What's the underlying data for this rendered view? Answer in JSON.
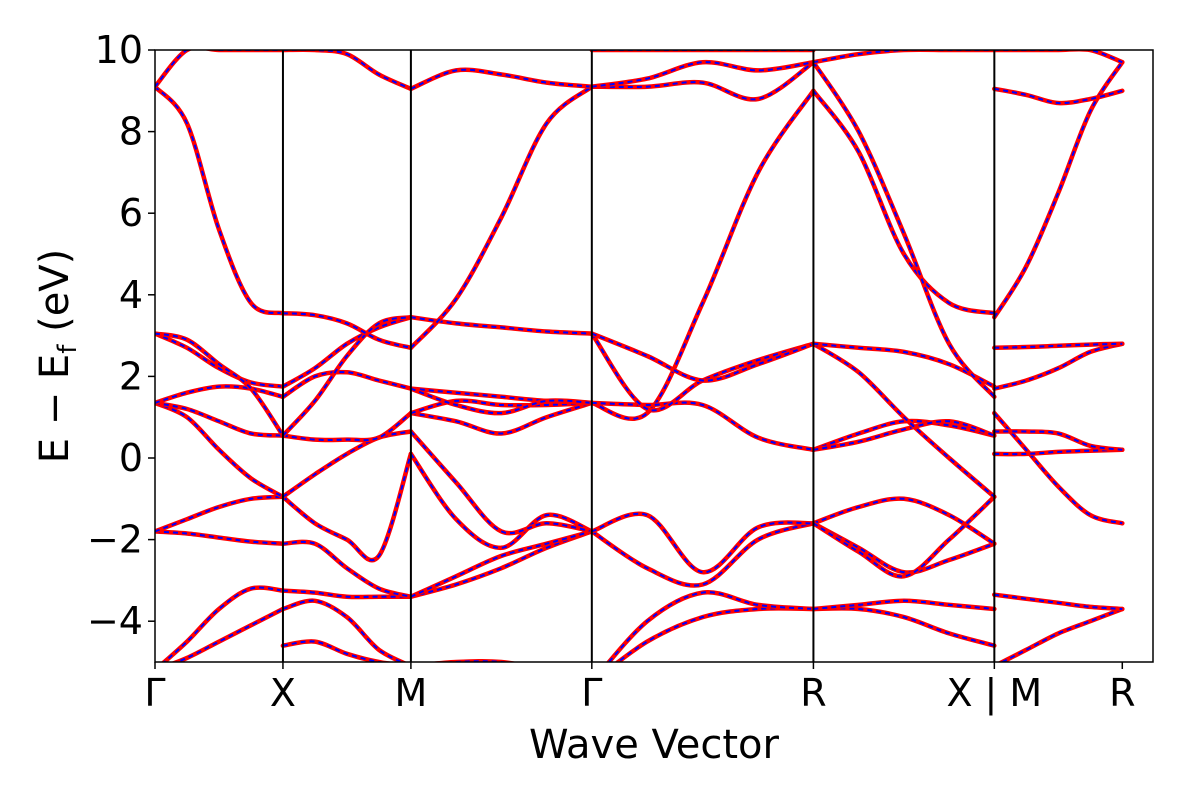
{
  "chart_data": {
    "type": "line",
    "xlabel": "Wave Vector",
    "ylabel": "E − E",
    "ylabel_sub": "f",
    "ylabel_unit": " (eV)",
    "ylim": [
      -5,
      10
    ],
    "yticks": [
      {
        "value": -4,
        "label": "−4"
      },
      {
        "value": -2,
        "label": "−2"
      },
      {
        "value": 0,
        "label": "0"
      },
      {
        "value": 2,
        "label": "2"
      },
      {
        "value": 4,
        "label": "4"
      },
      {
        "value": 6,
        "label": "6"
      },
      {
        "value": 8,
        "label": "8"
      },
      {
        "value": 10,
        "label": "10"
      }
    ],
    "xlim": [
      0,
      7.8
    ],
    "kpoints": [
      {
        "x": 0,
        "label": "Γ",
        "line": false
      },
      {
        "x": 1.0,
        "label": "X",
        "line": true
      },
      {
        "x": 2.0,
        "label": "M",
        "line": true
      },
      {
        "x": 3.414,
        "label": "Γ",
        "line": true
      },
      {
        "x": 5.146,
        "label": "R",
        "line": true
      },
      {
        "x": 6.56,
        "label": "X | M",
        "line": true
      },
      {
        "x": 7.56,
        "label": "R",
        "line": false
      }
    ],
    "overlay_colors": {
      "solid": "#ff0000",
      "dashed": "#0000ff"
    },
    "segments": [
      {
        "x_start": 0,
        "x_end": 1.0,
        "bands": [
          [
            -5.2,
            -4.5,
            -3.7,
            -3.2,
            -3.25
          ],
          [
            -5.2,
            -4.9,
            -4.5,
            -4.1,
            -3.7
          ],
          [
            -1.8,
            -1.85,
            -1.95,
            -2.05,
            -2.1
          ],
          [
            -1.8,
            -1.5,
            -1.2,
            -1.0,
            -0.95
          ],
          [
            1.35,
            1.0,
            0.2,
            -0.5,
            -0.95
          ],
          [
            1.35,
            1.2,
            0.9,
            0.6,
            0.55
          ],
          [
            1.35,
            1.6,
            1.75,
            1.7,
            1.5
          ],
          [
            3.05,
            2.7,
            2.2,
            1.85,
            1.75
          ],
          [
            3.05,
            2.9,
            2.3,
            1.7,
            0.55
          ],
          [
            9.1,
            8.2,
            5.6,
            3.8,
            3.55
          ],
          [
            9.1,
            10.0,
            10.0,
            10.0,
            10.0
          ]
        ]
      },
      {
        "x_start": 1.0,
        "x_end": 2.0,
        "bands": [
          [
            -4.6,
            -4.5,
            -4.8,
            -5.0,
            -5.1
          ],
          [
            -3.7,
            -3.5,
            -3.9,
            -4.7,
            -5.1
          ],
          [
            -3.25,
            -3.3,
            -3.4,
            -3.4,
            -3.4
          ],
          [
            -2.1,
            -2.1,
            -2.7,
            -3.2,
            -3.4
          ],
          [
            -0.95,
            -1.6,
            -2.0,
            -2.4,
            0.1
          ],
          [
            -0.95,
            -0.4,
            0.1,
            0.5,
            0.65
          ],
          [
            0.55,
            0.45,
            0.45,
            0.5,
            1.1
          ],
          [
            1.5,
            2.0,
            2.1,
            1.9,
            1.7
          ],
          [
            1.75,
            2.2,
            2.8,
            3.2,
            3.45
          ],
          [
            0.55,
            1.4,
            2.5,
            3.3,
            3.45
          ],
          [
            3.55,
            3.5,
            3.3,
            2.9,
            2.7
          ],
          [
            10.0,
            10.0,
            9.9,
            9.4,
            9.05
          ]
        ]
      },
      {
        "x_start": 2.0,
        "x_end": 3.414,
        "bands": [
          [
            -5.1,
            -5.0,
            -5.0,
            -5.2,
            -5.5
          ],
          [
            -3.4,
            -3.1,
            -2.7,
            -2.2,
            -1.8
          ],
          [
            -3.4,
            -2.9,
            -2.4,
            -2.1,
            -1.8
          ],
          [
            0.1,
            -1.5,
            -2.2,
            -1.4,
            -1.8
          ],
          [
            0.65,
            -0.6,
            -1.8,
            -1.6,
            -1.8
          ],
          [
            1.1,
            0.9,
            0.6,
            1.0,
            1.35
          ],
          [
            1.1,
            1.4,
            1.3,
            1.3,
            1.35
          ],
          [
            1.7,
            1.6,
            1.5,
            1.4,
            1.35
          ],
          [
            1.7,
            1.3,
            1.1,
            1.4,
            1.35
          ],
          [
            3.45,
            3.3,
            3.2,
            3.1,
            3.05
          ],
          [
            2.7,
            3.9,
            5.9,
            8.2,
            9.1
          ],
          [
            9.05,
            9.5,
            9.4,
            9.2,
            9.1
          ]
        ]
      },
      {
        "x_start": 3.414,
        "x_end": 5.146,
        "bands": [
          [
            -5.5,
            -4.5,
            -3.9,
            -3.7,
            -3.7
          ],
          [
            -5.5,
            -4.0,
            -3.3,
            -3.6,
            -3.7
          ],
          [
            -1.8,
            -2.7,
            -3.1,
            -2.0,
            -1.6
          ],
          [
            -1.8,
            -1.4,
            -2.8,
            -1.7,
            -1.6
          ],
          [
            1.35,
            1.1,
            3.8,
            7.0,
            9.0
          ],
          [
            1.35,
            1.3,
            1.3,
            0.5,
            0.2
          ],
          [
            3.05,
            1.2,
            1.9,
            2.4,
            2.8
          ],
          [
            3.05,
            2.5,
            1.9,
            2.3,
            2.8
          ],
          [
            9.1,
            9.1,
            9.2,
            8.8,
            9.7
          ],
          [
            9.1,
            9.3,
            9.7,
            9.5,
            9.7
          ],
          [
            10.0,
            10.0,
            10.0,
            10.0,
            10.0
          ]
        ]
      },
      {
        "x_start": 5.146,
        "x_end": 6.56,
        "bands": [
          [
            -3.7,
            -3.7,
            -3.9,
            -4.3,
            -4.6
          ],
          [
            -3.7,
            -3.6,
            -3.5,
            -3.6,
            -3.7
          ],
          [
            -1.6,
            -2.2,
            -2.8,
            -2.5,
            -2.1
          ],
          [
            -1.6,
            -1.2,
            -1.0,
            -1.4,
            -2.1
          ],
          [
            -1.6,
            -2.3,
            -2.9,
            -2.0,
            -0.95
          ],
          [
            0.2,
            0.6,
            0.9,
            0.8,
            0.55
          ],
          [
            0.2,
            0.4,
            0.7,
            0.9,
            0.55
          ],
          [
            2.8,
            2.1,
            1.0,
            0.0,
            -0.95
          ],
          [
            2.8,
            2.7,
            2.6,
            2.3,
            1.75
          ],
          [
            9.0,
            7.5,
            5.0,
            3.8,
            3.55
          ],
          [
            9.7,
            8.0,
            5.5,
            2.8,
            1.5
          ],
          [
            9.7,
            9.9,
            10.0,
            10.0,
            10.0
          ]
        ]
      },
      {
        "x_start": 6.56,
        "x_end": 7.56,
        "bands": [
          [
            -5.1,
            -4.7,
            -4.3,
            -4.0,
            -3.7
          ],
          [
            -3.35,
            -3.45,
            -3.55,
            -3.65,
            -3.7
          ],
          [
            1.1,
            0.2,
            -0.7,
            -1.4,
            -1.6
          ],
          [
            0.1,
            0.1,
            0.15,
            0.18,
            0.2
          ],
          [
            0.65,
            0.65,
            0.6,
            0.3,
            0.2
          ],
          [
            1.7,
            1.9,
            2.2,
            2.6,
            2.8
          ],
          [
            2.7,
            2.72,
            2.75,
            2.78,
            2.8
          ],
          [
            3.45,
            4.7,
            6.5,
            8.5,
            9.7
          ],
          [
            9.05,
            8.9,
            8.7,
            8.8,
            9.0
          ],
          [
            10.0,
            10.0,
            10.0,
            10.0,
            9.7
          ]
        ]
      }
    ]
  }
}
